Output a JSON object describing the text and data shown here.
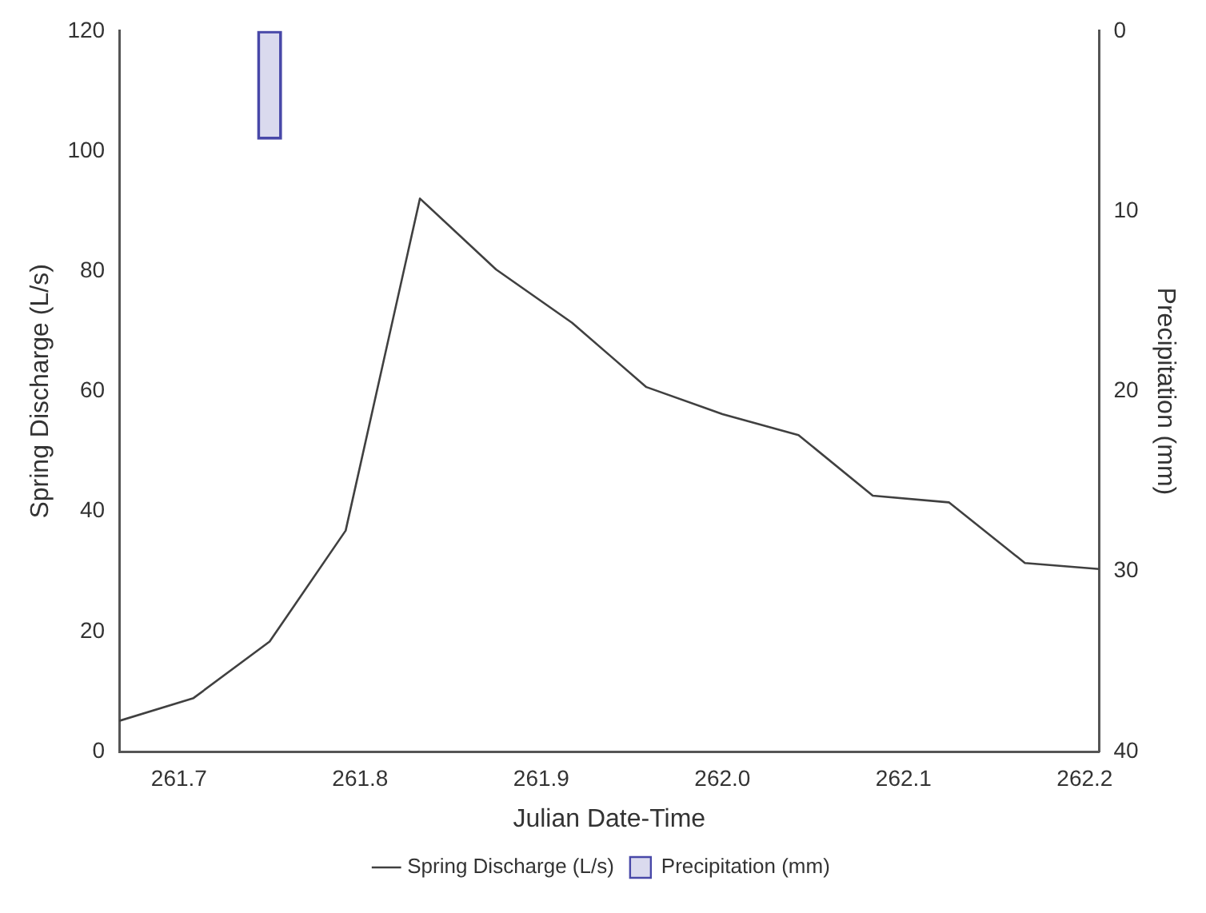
{
  "chart_data": {
    "type": "line",
    "xlabel": "Julian Date-Time",
    "ylabel": "Spring Discharge (L/s)",
    "y2label": "Precipitation (mm)",
    "xlim": [
      261.667,
      262.208
    ],
    "xticks": [
      261.7,
      261.8,
      261.9,
      {
        "value": 262.0,
        "label": "262.0"
      },
      262.1,
      262.2
    ],
    "ylim": [
      0,
      120
    ],
    "yticks": [
      0,
      20,
      40,
      60,
      80,
      100,
      120
    ],
    "y2lim": [
      40,
      0
    ],
    "y2ticks": [
      0,
      10,
      20,
      30,
      40
    ],
    "grid": false,
    "legend": "bottom",
    "marker": "none",
    "line_style": "solid",
    "series": [
      {
        "name": "Spring Discharge (L/s)",
        "color": "#404040",
        "x": [
          261.667,
          261.708,
          261.75,
          261.792,
          261.833,
          261.875,
          261.917,
          261.958,
          262.0,
          262.042,
          262.083,
          262.125,
          262.167,
          262.208
        ],
        "values": [
          5.1,
          8.9,
          18.3,
          36.8,
          92.1,
          80.3,
          71.4,
          60.7,
          56.2,
          52.7,
          42.6,
          41.5,
          31.4,
          30.4
        ]
      },
      {
        "name": "Precipitation (mm)",
        "type": "bar",
        "axis": "y2",
        "color": "#4848a8",
        "x": [
          261.75
        ],
        "values": [
          6
        ]
      }
    ]
  }
}
